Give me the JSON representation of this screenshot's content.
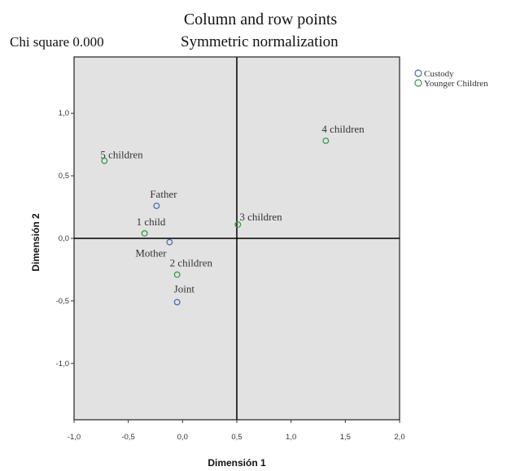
{
  "chart_data": {
    "type": "scatter",
    "title": "Column and row points",
    "subtitle_left": "Chi square 0.000",
    "subtitle_right": "Symmetric normalization",
    "xlabel": "Dimensión 1",
    "ylabel": "Dimensión 2",
    "xlim": [
      -1.0,
      2.0
    ],
    "ylim": [
      -1.45,
      1.45
    ],
    "xticks": [
      "-1,0",
      "-0,5",
      "0,0",
      "0,5",
      "1,0",
      "1,5",
      "2,0"
    ],
    "yticks": [
      "1,0",
      "0,5",
      "0,0",
      "-0,5",
      "-1,0"
    ],
    "grid": false,
    "legend_position": "top-right outside",
    "series": [
      {
        "name": "Custody",
        "color": "#4a6cb3",
        "points": [
          {
            "label": "Father",
            "x": -0.24,
            "y": 0.26
          },
          {
            "label": "Mother",
            "x": -0.12,
            "y": -0.03
          },
          {
            "label": "Joint",
            "x": -0.05,
            "y": -0.51
          }
        ]
      },
      {
        "name": "Younger Children",
        "color": "#3a9a4a",
        "points": [
          {
            "label": "1 child",
            "x": -0.35,
            "y": 0.04
          },
          {
            "label": "2 children",
            "x": -0.05,
            "y": -0.29
          },
          {
            "label": "3 children",
            "x": 0.51,
            "y": 0.11
          },
          {
            "label": "4 children",
            "x": 1.32,
            "y": 0.78
          },
          {
            "label": "5 children",
            "x": -0.72,
            "y": 0.62
          }
        ]
      }
    ]
  }
}
